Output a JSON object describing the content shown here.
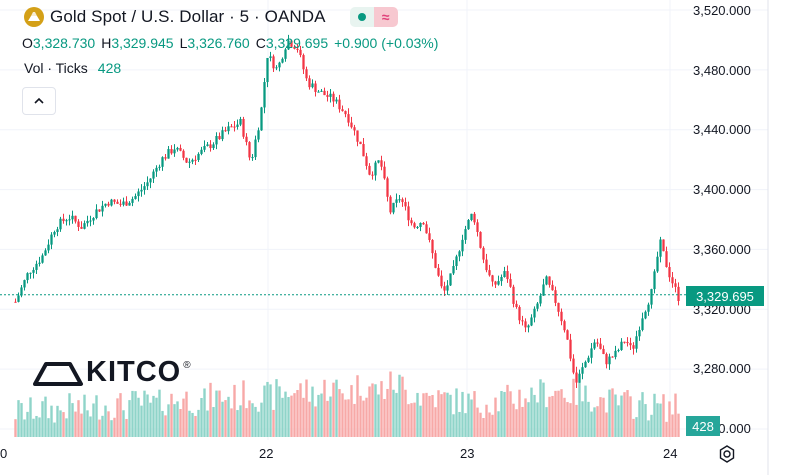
{
  "header": {
    "title": "Gold Spot / U.S. Dollar · 5 · OANDA",
    "status_live_icon": "green-dot-icon",
    "status_approx_glyph": "≈"
  },
  "ohlc": {
    "open_label": "O",
    "open_value": "3,328.730",
    "high_label": "H",
    "high_value": "3,329.945",
    "low_label": "L",
    "low_value": "3,326.760",
    "close_label": "C",
    "close_value": "3,329.695",
    "change": "+0.900 (+0.03%)"
  },
  "volume_indicator": {
    "label": "Vol · Ticks",
    "value": "428"
  },
  "collapse_glyph": "^",
  "logo": {
    "word": "KITCO",
    "reg": "®"
  },
  "price_axis": {
    "labels": [
      "3,520.000",
      "3,480.000",
      "3,440.000",
      "3,400.000",
      "3,360.000",
      "3,320.000",
      "3,280.000",
      "3,240.000"
    ],
    "current_price_tag": "3,329.695",
    "volume_tag": "428"
  },
  "time_axis": {
    "labels": [
      "0",
      "22",
      "23",
      "24"
    ]
  },
  "colors": {
    "up": "#089981",
    "down": "#f23645",
    "vol_up": "#8fd4c9",
    "vol_down": "#f7a9a7",
    "grid": "#f0f3fa",
    "price_line": "#089981"
  },
  "chart_data": {
    "type": "candlestick",
    "title": "Gold Spot / U.S. Dollar · 5 · OANDA",
    "ylim": [
      3240,
      3520
    ],
    "last_price": 3329.695,
    "x_ticks": [
      "22",
      "23",
      "24"
    ],
    "path_points": [
      [
        0,
        3325
      ],
      [
        0.02,
        3345
      ],
      [
        0.04,
        3355
      ],
      [
        0.06,
        3375
      ],
      [
        0.08,
        3382
      ],
      [
        0.1,
        3375
      ],
      [
        0.12,
        3385
      ],
      [
        0.14,
        3392
      ],
      [
        0.16,
        3390
      ],
      [
        0.18,
        3395
      ],
      [
        0.2,
        3405
      ],
      [
        0.22,
        3420
      ],
      [
        0.24,
        3428
      ],
      [
        0.26,
        3418
      ],
      [
        0.28,
        3425
      ],
      [
        0.3,
        3432
      ],
      [
        0.32,
        3440
      ],
      [
        0.34,
        3445
      ],
      [
        0.355,
        3418
      ],
      [
        0.37,
        3450
      ],
      [
        0.38,
        3490
      ],
      [
        0.395,
        3480
      ],
      [
        0.41,
        3500
      ],
      [
        0.425,
        3495
      ],
      [
        0.44,
        3472
      ],
      [
        0.46,
        3465
      ],
      [
        0.48,
        3460
      ],
      [
        0.5,
        3450
      ],
      [
        0.52,
        3430
      ],
      [
        0.535,
        3410
      ],
      [
        0.55,
        3420
      ],
      [
        0.565,
        3385
      ],
      [
        0.58,
        3395
      ],
      [
        0.6,
        3375
      ],
      [
        0.615,
        3380
      ],
      [
        0.63,
        3355
      ],
      [
        0.645,
        3330
      ],
      [
        0.66,
        3345
      ],
      [
        0.675,
        3370
      ],
      [
        0.69,
        3385
      ],
      [
        0.705,
        3355
      ],
      [
        0.72,
        3335
      ],
      [
        0.74,
        3345
      ],
      [
        0.755,
        3320
      ],
      [
        0.77,
        3305
      ],
      [
        0.785,
        3320
      ],
      [
        0.8,
        3340
      ],
      [
        0.815,
        3325
      ],
      [
        0.83,
        3305
      ],
      [
        0.845,
        3270
      ],
      [
        0.86,
        3285
      ],
      [
        0.875,
        3300
      ],
      [
        0.89,
        3285
      ],
      [
        0.905,
        3290
      ],
      [
        0.92,
        3300
      ],
      [
        0.93,
        3292
      ],
      [
        0.945,
        3315
      ],
      [
        0.96,
        3332
      ],
      [
        0.972,
        3365
      ],
      [
        0.985,
        3345
      ],
      [
        1.0,
        3328
      ]
    ],
    "volume_profile": [
      0.25,
      0.3,
      0.28,
      0.35,
      0.3,
      0.4,
      0.38,
      0.45,
      0.42,
      0.5,
      0.55,
      0.48,
      0.6,
      0.58,
      0.65,
      0.6,
      0.7,
      0.75,
      0.68,
      0.8,
      0.72,
      0.85,
      0.78,
      0.9,
      0.7,
      0.62,
      0.55,
      0.5,
      0.45,
      0.48,
      0.55,
      0.62,
      0.7,
      0.75,
      0.68,
      0.6,
      0.5,
      0.45,
      0.42,
      0.38,
      0.35,
      0.4
    ]
  }
}
